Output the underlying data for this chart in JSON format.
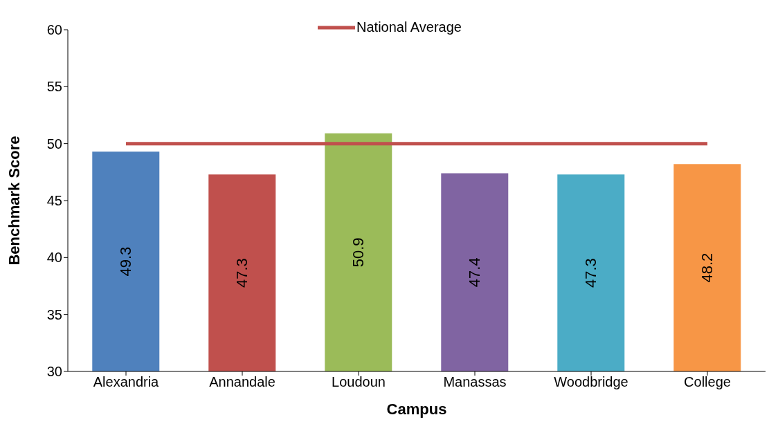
{
  "chart_data": {
    "type": "bar",
    "categories": [
      "Alexandria",
      "Annandale",
      "Loudoun",
      "Manassas",
      "Woodbridge",
      "College"
    ],
    "xlabel": "Campus",
    "ylabel": "Benchmark Score",
    "ylim": [
      30,
      60
    ],
    "yticks": [
      30,
      35,
      40,
      45,
      50,
      55,
      60
    ],
    "grid": false,
    "legend": "top",
    "marker": "none",
    "series": [
      {
        "colors": [
          "#4f81bd",
          "#c0504d",
          "#9bbb59",
          "#8064a2",
          "#4bacc6",
          "#f79646"
        ],
        "values": [
          49.3,
          47.3,
          50.9,
          47.4,
          47.3,
          48.2
        ],
        "value_labels": [
          "49.3",
          "47.3",
          "50.9",
          "47.4",
          "47.3",
          "48.2"
        ]
      },
      {
        "type": "line",
        "name": "National Average",
        "color": "#c0504d",
        "values": [
          50,
          50,
          50,
          50,
          50,
          50
        ]
      }
    ]
  }
}
